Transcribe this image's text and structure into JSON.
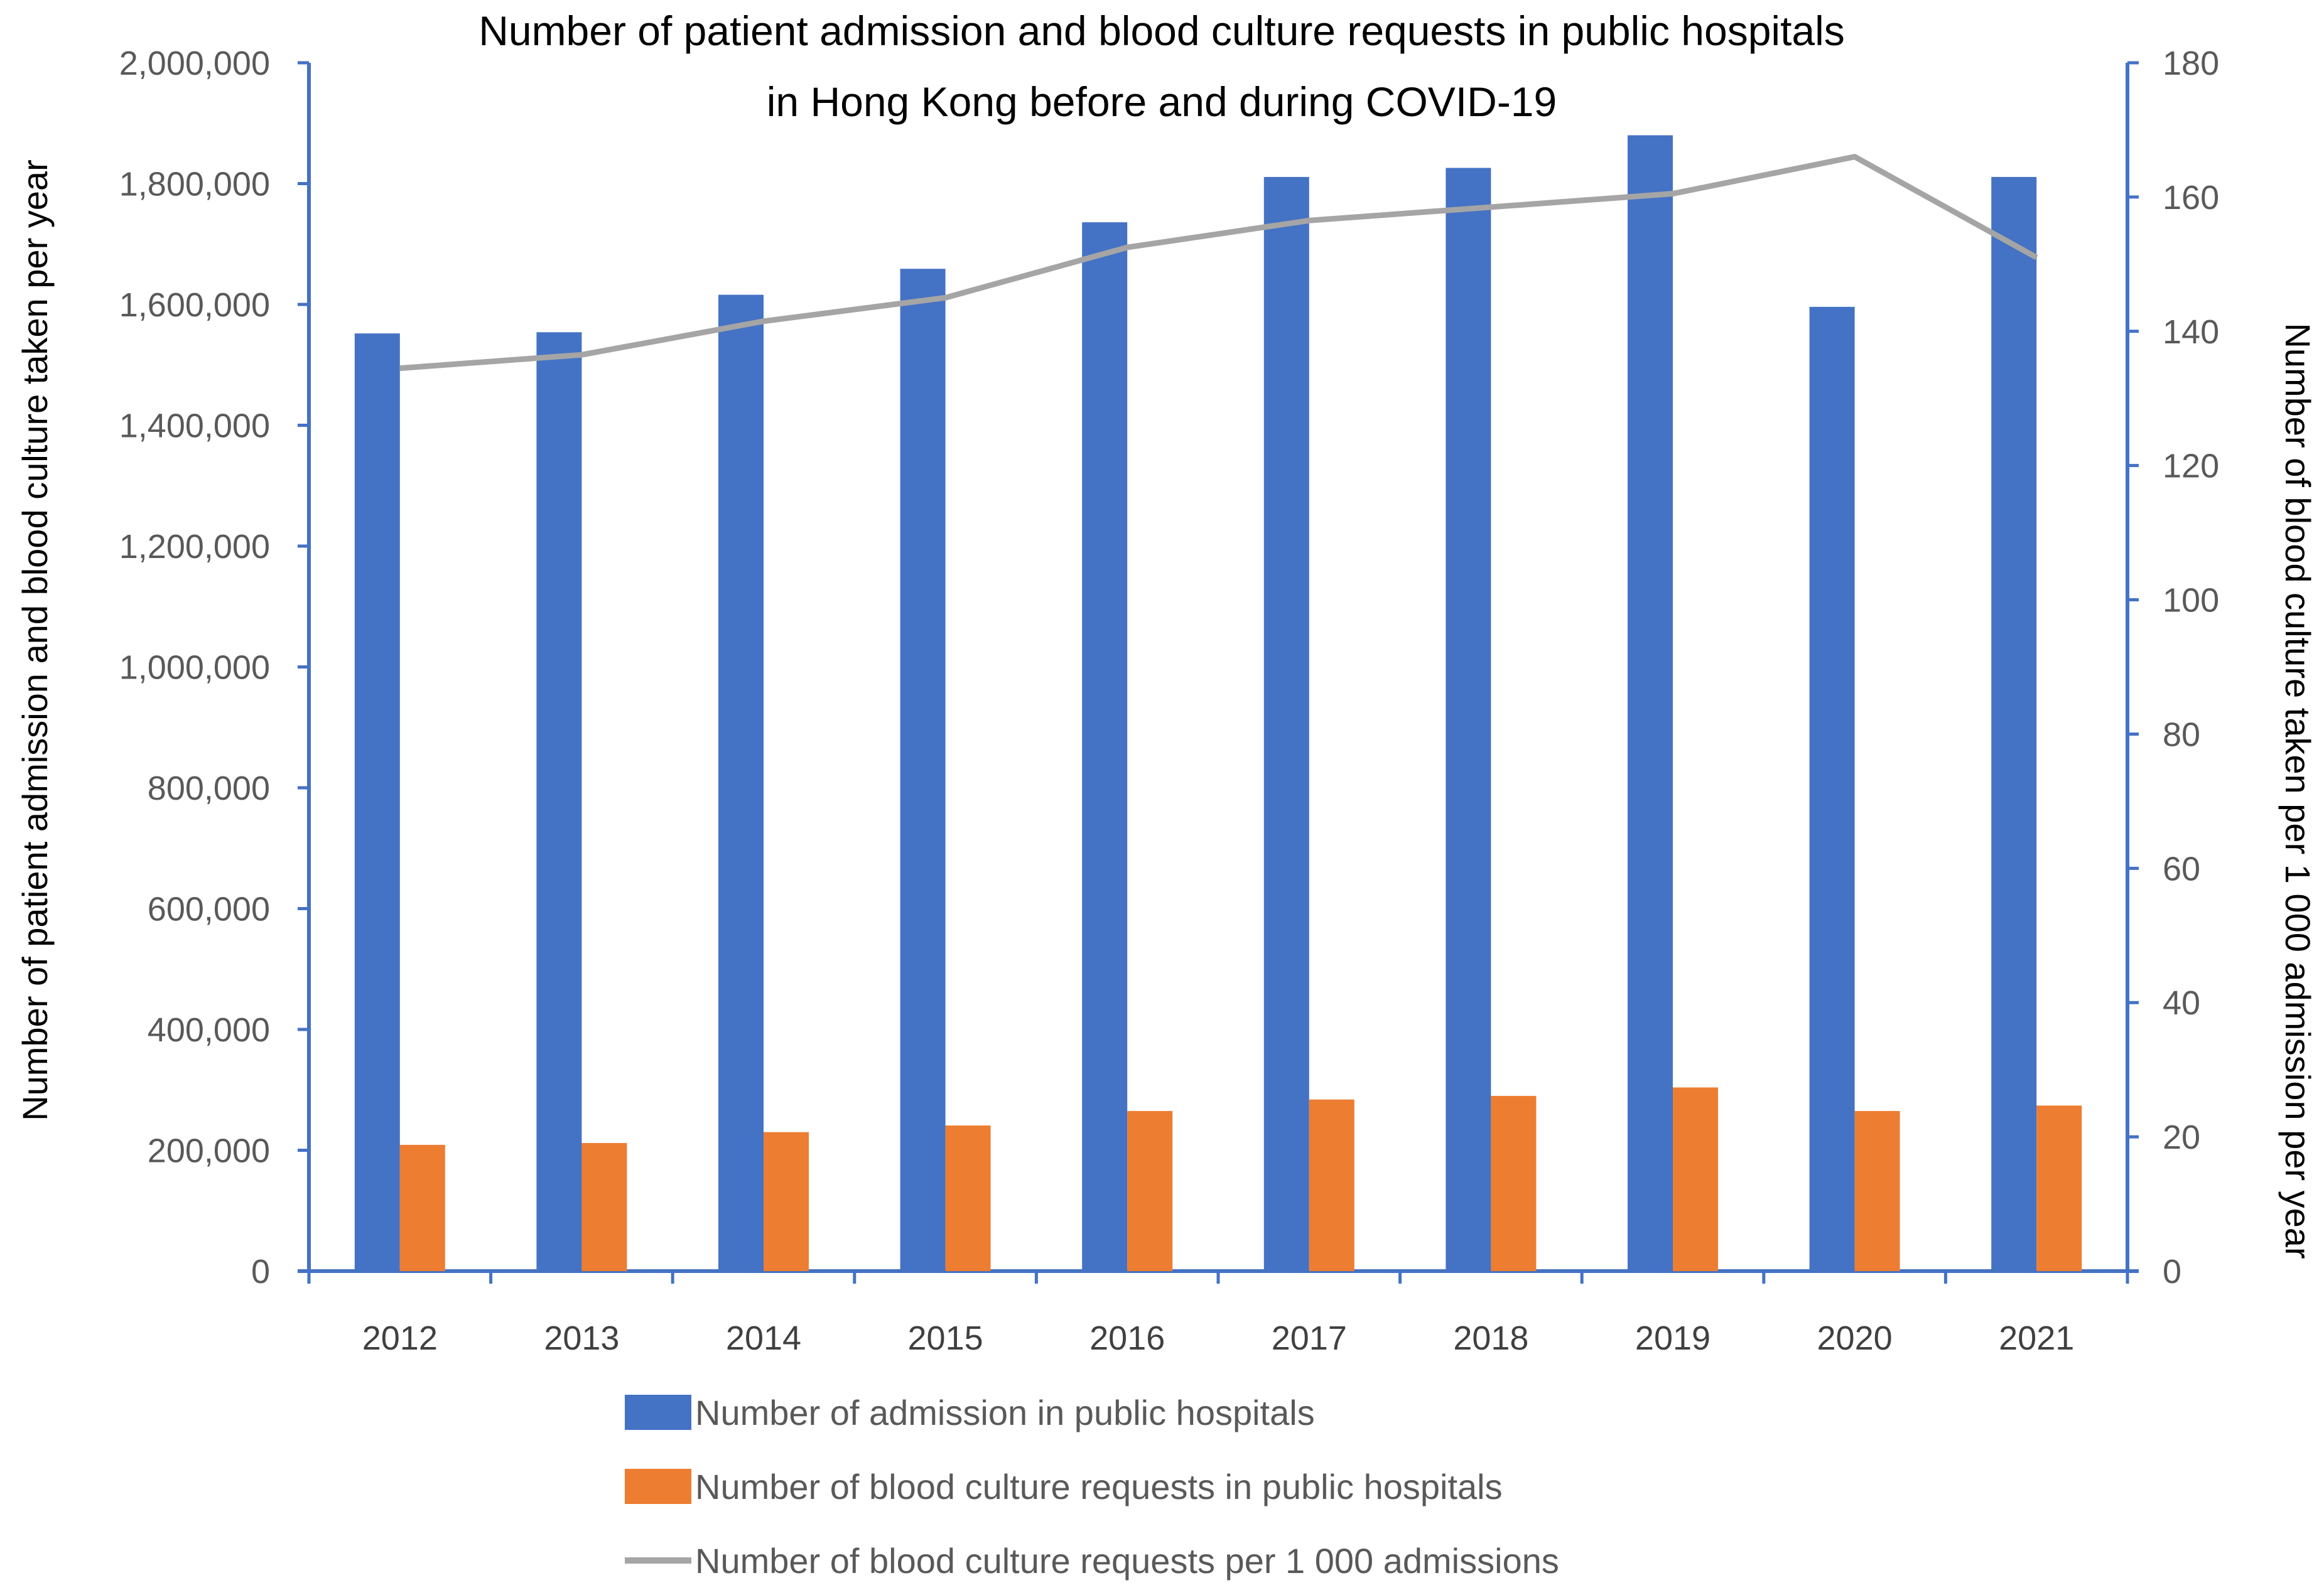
{
  "chart_data": {
    "type": "bar",
    "title": "Number of patient admission and blood culture requests in public hospitals",
    "title_line2": "in Hong Kong before and during COVID-19",
    "categories": [
      "2012",
      "2013",
      "2014",
      "2015",
      "2016",
      "2017",
      "2018",
      "2019",
      "2020",
      "2021"
    ],
    "series": [
      {
        "name": "Number of admission in public hospitals",
        "kind": "bar",
        "axis": "left",
        "color": "#4472C4",
        "values": [
          1552000,
          1554000,
          1616000,
          1659000,
          1736000,
          1811000,
          1826000,
          1880000,
          1596000,
          1811000
        ]
      },
      {
        "name": "Number of blood culture requests in public hospitals",
        "kind": "bar",
        "axis": "left",
        "color": "#ED7D31",
        "values": [
          209000,
          212000,
          230000,
          241000,
          265000,
          284000,
          290000,
          304000,
          265000,
          274000
        ]
      },
      {
        "name": "Number of blood culture requests per 1 000 admissions",
        "kind": "line",
        "axis": "right",
        "color": "#A5A5A5",
        "values": [
          134.5,
          136.5,
          141.5,
          145.0,
          152.5,
          156.5,
          158.5,
          160.5,
          166.0,
          151.0
        ]
      }
    ],
    "ylabel": "Number of patient admission and blood culture taken per year",
    "ylabel_right": "Number of blood culture taken per 1 000 admission per year",
    "ylim": [
      0,
      2000000
    ],
    "ylim_right": [
      0,
      180
    ],
    "yticks": [
      "0",
      "200,000",
      "400,000",
      "600,000",
      "800,000",
      "1,000,000",
      "1,200,000",
      "1,400,000",
      "1,600,000",
      "1,800,000",
      "2,000,000"
    ],
    "yticks_right": [
      "0",
      "20",
      "40",
      "60",
      "80",
      "100",
      "120",
      "140",
      "160",
      "180"
    ],
    "legend_position": "bottom",
    "axis_color": "#4472C4",
    "grid": false
  }
}
